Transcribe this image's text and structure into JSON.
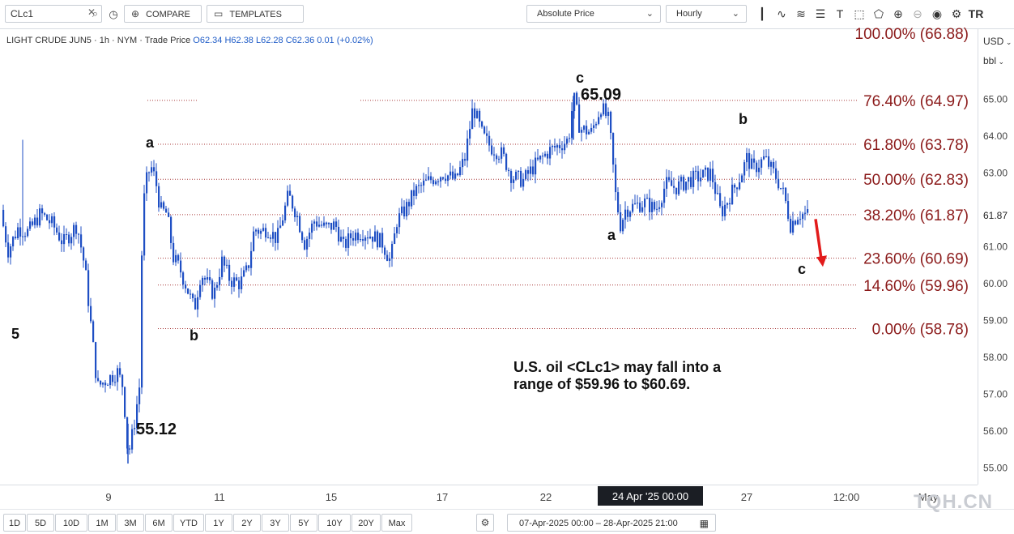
{
  "toolbar": {
    "symbol": "CLc1",
    "compare_label": "COMPARE",
    "templates_label": "TEMPLATES",
    "price_type": "Absolute Price",
    "interval": "Hourly",
    "logo": "TR"
  },
  "header": {
    "instrument": "LIGHT CRUDE JUN5",
    "interval": "1h",
    "exchange": "NYM",
    "mode": "Trade Price",
    "open": "O62.34",
    "high": "H62.38",
    "low": "L62.28",
    "close": "C62.36",
    "change": "0.01 (+0.02%)"
  },
  "axis_units": {
    "currency": "USD",
    "unit": "bbl"
  },
  "crosshair_label": "24 Apr '25   00:00",
  "annotation_text": "U.S. oil <CLc1> may fall into a range of $59.96 to $60.69.",
  "annotation_line1": "U.S. oil <CLc1> may fall into a",
  "annotation_line2": "range of $59.96 to $60.69.",
  "time_ranges": [
    "1D",
    "5D",
    "10D",
    "1M",
    "3M",
    "6M",
    "YTD",
    "1Y",
    "2Y",
    "3Y",
    "5Y",
    "10Y",
    "20Y",
    "Max"
  ],
  "date_range": "07-Apr-2025 00:00  –  28-Apr-2025 21:00",
  "watermark": "TQH.CN",
  "colors": {
    "candles": "#1f4fc4",
    "fib_text": "#8b1a1a",
    "fib_line": "#a83a3a",
    "arrow": "#e21b1b"
  },
  "chart_data": {
    "type": "candlestick",
    "series_color": "#1f4fc4",
    "y_axis_ticks": [
      55.0,
      56.0,
      57.0,
      58.0,
      59.0,
      60.0,
      61.0,
      62.0,
      63.0,
      64.0,
      65.0
    ],
    "y_axis_tick_labels": [
      "55.00",
      "56.00",
      "57.00",
      "58.00",
      "59.00",
      "60.00",
      "61.00",
      "",
      "63.00",
      "64.00",
      "65.00"
    ],
    "ylim": [
      54.55,
      66.9
    ],
    "last_price_label": "61.87",
    "x_axis_ticks": [
      "9",
      "11",
      "15",
      "17",
      "22",
      "24 Apr '25  00:00",
      "27",
      "12:00",
      "May"
    ],
    "price_path": [
      [
        0,
        62.0
      ],
      [
        10,
        60.9
      ],
      [
        22,
        61.5
      ],
      [
        35,
        61.4
      ],
      [
        50,
        61.9
      ],
      [
        65,
        61.6
      ],
      [
        78,
        61.1
      ],
      [
        95,
        61.6
      ],
      [
        105,
        60.4
      ],
      [
        120,
        57.2
      ],
      [
        132,
        57.4
      ],
      [
        145,
        57.6
      ],
      [
        152,
        57.2
      ],
      [
        158,
        55.3
      ],
      [
        165,
        56.1
      ],
      [
        172,
        57.2
      ],
      [
        176,
        62.0
      ],
      [
        181,
        62.8
      ],
      [
        186,
        63.2
      ],
      [
        192,
        62.8
      ],
      [
        198,
        62.0
      ],
      [
        206,
        61.9
      ],
      [
        214,
        60.7
      ],
      [
        222,
        60.4
      ],
      [
        232,
        59.8
      ],
      [
        240,
        59.3
      ],
      [
        248,
        60.3
      ],
      [
        256,
        60.0
      ],
      [
        264,
        59.7
      ],
      [
        274,
        60.6
      ],
      [
        284,
        60.1
      ],
      [
        296,
        60.0
      ],
      [
        306,
        60.4
      ],
      [
        314,
        61.5
      ],
      [
        322,
        61.4
      ],
      [
        330,
        61.5
      ],
      [
        342,
        61.2
      ],
      [
        356,
        62.4
      ],
      [
        366,
        61.9
      ],
      [
        376,
        61.1
      ],
      [
        388,
        61.7
      ],
      [
        402,
        61.5
      ],
      [
        414,
        61.6
      ],
      [
        424,
        61.0
      ],
      [
        434,
        61.3
      ],
      [
        446,
        61.4
      ],
      [
        460,
        61.3
      ],
      [
        472,
        61.1
      ],
      [
        482,
        60.6
      ],
      [
        490,
        61.7
      ],
      [
        500,
        62.0
      ],
      [
        512,
        62.5
      ],
      [
        530,
        62.8
      ],
      [
        548,
        63.0
      ],
      [
        562,
        62.8
      ],
      [
        574,
        63.4
      ],
      [
        584,
        64.8
      ],
      [
        596,
        64.0
      ],
      [
        606,
        63.7
      ],
      [
        620,
        63.5
      ],
      [
        632,
        62.9
      ],
      [
        646,
        62.8
      ],
      [
        660,
        63.2
      ],
      [
        678,
        63.6
      ],
      [
        694,
        63.8
      ],
      [
        702,
        63.9
      ],
      [
        708,
        65.09
      ],
      [
        716,
        64.2
      ],
      [
        730,
        64.1
      ],
      [
        742,
        64.8
      ],
      [
        752,
        64.4
      ],
      [
        760,
        62.4
      ],
      [
        766,
        61.6
      ],
      [
        772,
        62.0
      ],
      [
        782,
        62.1
      ],
      [
        796,
        62.2
      ],
      [
        810,
        62.0
      ],
      [
        822,
        62.7
      ],
      [
        834,
        62.6
      ],
      [
        850,
        62.8
      ],
      [
        864,
        62.9
      ],
      [
        878,
        63.0
      ],
      [
        890,
        61.9
      ],
      [
        904,
        62.5
      ],
      [
        914,
        62.9
      ],
      [
        922,
        63.4
      ],
      [
        930,
        63.1
      ],
      [
        944,
        63.4
      ],
      [
        958,
        62.9
      ],
      [
        968,
        62.4
      ],
      [
        976,
        61.6
      ],
      [
        986,
        61.9
      ],
      [
        998,
        61.87
      ]
    ],
    "annotations": [
      {
        "label": "5",
        "price": 59.1
      },
      {
        "label": "55.12",
        "price": 55.12
      },
      {
        "label": "a",
        "price": 63.6
      },
      {
        "label": "b",
        "price": 58.78
      },
      {
        "label": "c",
        "price": 65.4
      },
      {
        "label": "65.09",
        "price": 65.09
      },
      {
        "label": "a",
        "price": 61.2
      },
      {
        "label": "b",
        "price": 64.1
      },
      {
        "label": "c",
        "price": 60.2
      }
    ],
    "fibonacci_levels": [
      {
        "label": "100.00% (66.88)",
        "pct": 100.0,
        "price": 66.88
      },
      {
        "label": "76.40% (64.97)",
        "pct": 76.4,
        "price": 64.97
      },
      {
        "label": "61.80% (63.78)",
        "pct": 61.8,
        "price": 63.78
      },
      {
        "label": "50.00% (62.83)",
        "pct": 50.0,
        "price": 62.83
      },
      {
        "label": "38.20% (61.87)",
        "pct": 38.2,
        "price": 61.87
      },
      {
        "label": "23.60% (60.69)",
        "pct": 23.6,
        "price": 60.69
      },
      {
        "label": "14.60% (59.96)",
        "pct": 14.6,
        "price": 59.96
      },
      {
        "label": "0.00% (58.78)",
        "pct": 0.0,
        "price": 58.78
      }
    ],
    "forecast_arrow": {
      "from": 61.75,
      "to": 60.5
    }
  }
}
